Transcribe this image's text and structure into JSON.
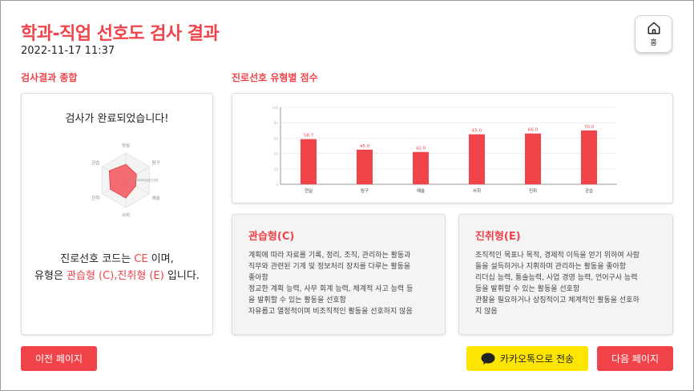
{
  "header": {
    "title": "학과-직업 선호도 검사 결과",
    "datetime": "2022-11-17 11:37",
    "home_label": "홈"
  },
  "summary": {
    "section_title": "검사결과 종합",
    "heading": "검사가 완료되었습니다!",
    "radar": {
      "labels": [
        "현실",
        "탐구",
        "예술",
        "사회",
        "진취",
        "관습"
      ],
      "scale_labels": [
        "0",
        "20",
        "40",
        "60",
        "80",
        "100"
      ],
      "values": [
        58.7,
        45.0,
        42.0,
        65.0,
        66.0,
        70.0
      ],
      "max": 100,
      "fill_color": "#f2545b",
      "grid_color": "#d8d8d8"
    },
    "line1_prefix": "진로선호 코드는 ",
    "code": "CE",
    "line1_suffix": " 이며,",
    "line2_prefix": "유형은 ",
    "types": "관습형 (C),진취형 (E)",
    "line2_suffix": " 입니다."
  },
  "chart_section_title": "진로선호 유형별 점수",
  "chart_data": {
    "type": "bar",
    "categories": [
      "현실",
      "탐구",
      "예술",
      "사회",
      "진취",
      "관습"
    ],
    "values": [
      58.7,
      45.0,
      42.0,
      65.0,
      66.0,
      70.0
    ],
    "value_labels": [
      "58.7",
      "45.0",
      "42.0",
      "65.0",
      "66.0",
      "70.0"
    ],
    "ylim": [
      0,
      100
    ],
    "yticks": [
      "0",
      "20",
      "40",
      "60",
      "80",
      "100"
    ],
    "bar_color": "#f0434a",
    "grid": true
  },
  "type_cards": [
    {
      "title": "관습형(C)",
      "lines": [
        "계획에 따라 자료를 기록, 정리, 조직, 관리하는 활동과",
        "직무와 관련된 기계 및 정보처리 장치를 다루는 활동을",
        "좋아함",
        "정교한 계획 능력, 사무 회계 능력, 체계적 사고 능력 등",
        "을 발휘할 수 있는 활동을 선호함",
        "자유롭고 열정적이며 비조직적인 활동을 선호하지 않음"
      ]
    },
    {
      "title": "진취형(E)",
      "lines": [
        "조직적인 목표나 목적, 경제적 이득을 얻기 위하여 사람",
        "들을 설득하거나 지휘하며 관리하는 활동을 좋아함",
        "리더십 능력, 통솔능력, 사업 경영 능력, 언어구사 능력",
        "등을 발휘할 수 있는 활동을 선호함",
        "관찰을 필요하거나 상징적이고 체계적인 활동을 선호하",
        "지 않음"
      ]
    }
  ],
  "buttons": {
    "prev": "이전 페이지",
    "kakao": "카카오톡으로 전송",
    "next": "다음 페이지"
  },
  "colors": {
    "accent": "#f0434a",
    "kakao": "#fee500"
  }
}
